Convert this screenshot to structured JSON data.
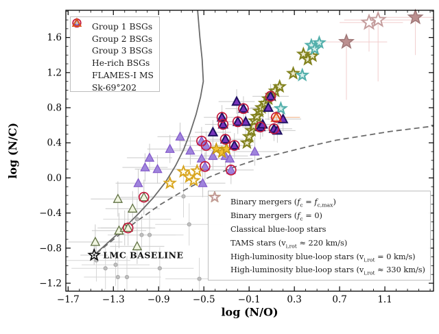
{
  "chart_data": {
    "type": "scatter",
    "title": "",
    "xlabel": "log (N/O)",
    "ylabel": "log (N/C)",
    "xlim": [
      -1.72,
      1.53
    ],
    "ylim": [
      -1.29,
      1.91
    ],
    "xticks": [
      -1.7,
      -1.3,
      -0.9,
      -0.5,
      -0.1,
      0.3,
      0.7,
      1.1
    ],
    "yticks": [
      -1.2,
      -0.8,
      -0.4,
      0.0,
      0.4,
      0.8,
      1.2,
      1.6
    ],
    "minor_tick_step": 0.1,
    "grid": false,
    "legend_positions": [
      "upper left",
      "lower right"
    ],
    "baseline": {
      "label": "LMC BASELINE",
      "x": -1.47,
      "y": -0.88,
      "color": "#1a1a1a"
    },
    "curves": [
      {
        "name": "CN-equilibrium track (solid)",
        "style": "solid",
        "color": "#6a6a6a",
        "points": [
          [
            -1.47,
            -0.88
          ],
          [
            -1.35,
            -0.74
          ],
          [
            -1.22,
            -0.59
          ],
          [
            -1.08,
            -0.41
          ],
          [
            -0.95,
            -0.23
          ],
          [
            -0.84,
            -0.05
          ],
          [
            -0.75,
            0.14
          ],
          [
            -0.68,
            0.32
          ],
          [
            -0.62,
            0.52
          ],
          [
            -0.57,
            0.72
          ],
          [
            -0.53,
            0.92
          ],
          [
            -0.505,
            1.1
          ],
          [
            -0.515,
            1.35
          ],
          [
            -0.535,
            1.6
          ],
          [
            -0.555,
            1.91
          ]
        ]
      },
      {
        "name": "CNO-equilibrium track (dashed)",
        "style": "dashed",
        "color": "#6a6a6a",
        "points": [
          [
            -1.45,
            -0.86
          ],
          [
            -1.27,
            -0.67
          ],
          [
            -1.09,
            -0.49
          ],
          [
            -0.88,
            -0.3
          ],
          [
            -0.66,
            -0.13
          ],
          [
            -0.45,
            0.01
          ],
          [
            -0.24,
            0.12
          ],
          [
            -0.03,
            0.21
          ],
          [
            0.18,
            0.28
          ],
          [
            0.43,
            0.36
          ],
          [
            0.67,
            0.43
          ],
          [
            0.91,
            0.48
          ],
          [
            1.15,
            0.53
          ],
          [
            1.4,
            0.57
          ],
          [
            1.53,
            0.59
          ]
        ]
      }
    ],
    "series": [
      {
        "id": "flames",
        "label": "FLAMES-I MS",
        "marker": "dot",
        "fill": "#bfbfbf",
        "stroke": "#a8a8a8",
        "size": 2.6,
        "stroke_width": 1,
        "xerr": 0.3,
        "yerr": 0.24,
        "err_color": "#d6d6d6",
        "points": [
          [
            -1.45,
            -0.94
          ],
          [
            -1.37,
            -1.03
          ],
          [
            -1.28,
            -0.99
          ],
          [
            -1.26,
            -1.13
          ],
          [
            -1.18,
            -1.13
          ],
          [
            -1.09,
            -0.47
          ],
          [
            -1.05,
            -0.65
          ],
          [
            -0.98,
            -0.65
          ],
          [
            -0.89,
            -1.03
          ],
          [
            -0.68,
            -0.21
          ],
          [
            -0.63,
            -0.53
          ],
          [
            -0.54,
            -1.15
          ]
        ]
      },
      {
        "id": "group1",
        "label": "Group 1 BSGs",
        "marker": "triangle",
        "fill": "#f0f5e0",
        "stroke": "#5f7042",
        "size": 6.5,
        "stroke_width": 1.3,
        "xerr": 0.24,
        "yerr": 0.2,
        "err_color": "#c9c9c9",
        "points": [
          [
            -1.46,
            -0.73
          ],
          [
            -1.26,
            -0.24
          ],
          [
            -1.13,
            -0.35
          ],
          [
            -1.25,
            -0.6
          ],
          [
            -1.2,
            -0.57
          ],
          [
            -1.09,
            -0.78
          ],
          [
            -1.03,
            -0.22
          ],
          [
            -1.17,
            -0.57
          ]
        ]
      },
      {
        "id": "group2",
        "label": "Group 2 BSGs",
        "marker": "triangle",
        "fill": "#9f84dc",
        "stroke": "#8257c9",
        "size": 6.5,
        "stroke_width": 1.2,
        "xerr": 0.2,
        "yerr": 0.16,
        "err_color": "#c9c9c9",
        "points": [
          [
            -1.08,
            -0.06
          ],
          [
            -1.02,
            0.12
          ],
          [
            -0.98,
            0.23
          ],
          [
            -0.91,
            0.1
          ],
          [
            -0.8,
            0.33
          ],
          [
            -0.71,
            0.47
          ],
          [
            -0.62,
            0.31
          ],
          [
            -0.52,
            0.22
          ],
          [
            -0.42,
            0.25
          ],
          [
            -0.31,
            0.25
          ],
          [
            -0.27,
            0.22
          ],
          [
            -0.05,
            0.3
          ],
          [
            -0.51,
            -0.06
          ],
          [
            -0.49,
            0.13
          ],
          [
            -0.26,
            0.09
          ],
          [
            -0.52,
            0.42
          ],
          [
            -0.48,
            0.37
          ]
        ]
      },
      {
        "id": "tams",
        "label": "TAMS stars",
        "marker": "star",
        "fill": "#fffdf0",
        "stroke": "#d9a620",
        "size": 8,
        "stroke_width": 2,
        "points": [
          [
            -0.8,
            -0.06
          ],
          [
            -0.68,
            0.07
          ],
          [
            -0.63,
            0.01
          ],
          [
            -0.56,
            0.08
          ],
          [
            -0.59,
            -0.03
          ]
        ]
      },
      {
        "id": "classical",
        "label": "Classical blue-loop stars",
        "marker": "star",
        "fill": "#f2c235",
        "stroke": "#c79a15",
        "size": 8,
        "stroke_width": 1.6,
        "points": [
          [
            -0.39,
            0.33
          ],
          [
            -0.34,
            0.29
          ],
          [
            -0.3,
            0.33
          ]
        ]
      },
      {
        "id": "binary_olive",
        "label": "Binary mergers (fc = 0)",
        "marker": "star",
        "fill": "#ecead0",
        "stroke": "#82821e",
        "size": 8,
        "stroke_width": 2.2,
        "points": [
          [
            -0.12,
            0.4
          ],
          [
            -0.1,
            0.47
          ],
          [
            -0.08,
            0.54
          ],
          [
            -0.06,
            0.59
          ],
          [
            -0.05,
            0.65
          ],
          [
            -0.03,
            0.7
          ],
          [
            -0.01,
            0.76
          ],
          [
            0.01,
            0.8
          ],
          [
            0.04,
            0.85
          ],
          [
            0.07,
            0.9
          ],
          [
            0.1,
            0.94
          ],
          [
            0.13,
            0.99
          ],
          [
            0.17,
            1.04
          ],
          [
            0.29,
            1.19
          ],
          [
            0.38,
            1.41
          ],
          [
            0.42,
            1.35
          ],
          [
            0.46,
            1.39
          ]
        ]
      },
      {
        "id": "binary_teal",
        "label": "Binary mergers (fc = fc,max)",
        "marker": "star",
        "fill": "#d8efec",
        "stroke": "#54b0ac",
        "size": 8,
        "stroke_width": 2.2,
        "points": [
          [
            0.18,
            0.79
          ],
          [
            0.37,
            1.17
          ],
          [
            0.45,
            1.51
          ],
          [
            0.48,
            1.47
          ],
          [
            0.52,
            1.54
          ]
        ]
      },
      {
        "id": "group3",
        "label": "Group 3 BSGs",
        "marker": "triangle",
        "fill": "#7733bb",
        "stroke": "#1e1060",
        "size": 6.5,
        "stroke_width": 2,
        "xerr": 0.16,
        "yerr": 0.14,
        "err_color": "#c9c9c9",
        "points": [
          [
            -0.42,
            0.52
          ],
          [
            -0.34,
            0.69
          ],
          [
            -0.33,
            0.61
          ],
          [
            -0.31,
            0.44
          ],
          [
            -0.23,
            0.37
          ],
          [
            -0.21,
            0.87
          ],
          [
            -0.2,
            0.64
          ],
          [
            -0.15,
            0.79
          ],
          [
            -0.13,
            0.64
          ],
          [
            0.0,
            0.58
          ],
          [
            0.02,
            0.61
          ],
          [
            0.07,
            0.8
          ],
          [
            0.09,
            0.93
          ],
          [
            0.12,
            0.56
          ],
          [
            0.15,
            0.54
          ],
          [
            0.2,
            0.67
          ]
        ]
      },
      {
        "id": "sk69",
        "label": "Sk-69°202",
        "marker": "triangle",
        "fill": "none",
        "stroke": "#e0541e",
        "size": 7,
        "stroke_width": 2.2,
        "xerr": [
          0.06,
          0.21
        ],
        "yerr": [
          0.05,
          0.05
        ],
        "err_color": "#eda878",
        "points": [
          [
            0.14,
            0.69
          ]
        ]
      },
      {
        "id": "herich",
        "label": "He-rich BSGs",
        "marker": "circle",
        "fill": "none",
        "stroke": "#c2173b",
        "size": 7,
        "stroke_width": 1.7,
        "points": [
          [
            -1.03,
            -0.22
          ],
          [
            -1.17,
            -0.57
          ],
          [
            -0.49,
            0.13
          ],
          [
            -0.26,
            0.09
          ],
          [
            -0.52,
            0.42
          ],
          [
            -0.48,
            0.37
          ],
          [
            -0.34,
            0.69
          ],
          [
            -0.33,
            0.61
          ],
          [
            -0.31,
            0.44
          ],
          [
            -0.23,
            0.37
          ],
          [
            -0.2,
            0.64
          ],
          [
            -0.15,
            0.79
          ],
          [
            0.0,
            0.58
          ],
          [
            0.09,
            0.93
          ],
          [
            0.12,
            0.56
          ],
          [
            0.14,
            0.69
          ]
        ]
      },
      {
        "id": "hl_filled",
        "label": "High-luminosity blue-loop stars (vi,rot = 0 km/s)",
        "marker": "star",
        "fill": "#bc8f8f",
        "stroke": "#9e7676",
        "size": 10.5,
        "stroke_width": 1.5,
        "err_color": "#f1cccc",
        "points": [
          [
            0.76,
            1.55
          ],
          [
            1.37,
            1.83
          ]
        ],
        "bars": [
          [
            0.21,
            0.36,
            0.66,
            0.08
          ],
          [
            0.27,
            0.17,
            0.43,
            0.04
          ]
        ]
      },
      {
        "id": "hl_open",
        "label": "High-luminosity blue-loop stars (vi,rot ≈ 330 km/s)",
        "marker": "star",
        "fill": "#ffffff",
        "stroke": "#c49c9c",
        "size": 10.5,
        "stroke_width": 2,
        "err_color": "#f1cccc",
        "points": [
          [
            0.96,
            1.77
          ],
          [
            1.04,
            1.8
          ]
        ],
        "bars": [
          [
            0.26,
            0.3,
            0.33,
            0.05
          ],
          [
            0.3,
            0.35,
            0.7,
            0.04
          ]
        ]
      }
    ]
  },
  "legend_left": {
    "items": [
      {
        "series": "group1",
        "label": "Group 1 BSGs"
      },
      {
        "series": "group2",
        "label": "Group 2 BSGs"
      },
      {
        "series": "group3",
        "label": "Group 3 BSGs"
      },
      {
        "series": "herich",
        "label": "He-rich BSGs"
      },
      {
        "series": "flames",
        "label": "FLAMES-I MS"
      },
      {
        "series": "sk69",
        "label": "Sk-69°202"
      }
    ]
  },
  "legend_right": {
    "items": [
      {
        "series": "binary_teal",
        "label": "Binary mergers (*f*_{c} = *f*_{c,max})"
      },
      {
        "series": "binary_olive",
        "label": "Binary mergers (*f*_{c} = 0)"
      },
      {
        "series": "classical",
        "label": "Classical blue-loop stars"
      },
      {
        "series": "tams",
        "label": "TAMS stars (v_{i,rot} ≈ 220 km/s)"
      },
      {
        "series": "hl_filled",
        "label": "High-luminosity blue-loop stars (v_{i,rot} = 0 km/s)"
      },
      {
        "series": "hl_open",
        "label": "High-luminosity blue-loop stars (v_{i,rot} ≈ 330 km/s)"
      }
    ]
  }
}
